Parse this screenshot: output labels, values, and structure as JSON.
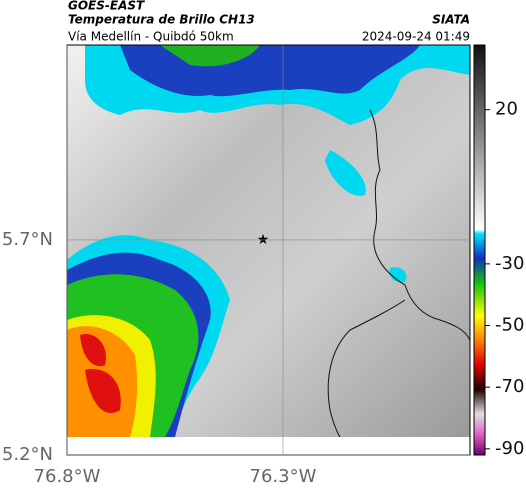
{
  "header": {
    "source": "GOES-EAST",
    "title": "Temperatura de Brillo CH13",
    "brand": "SIATA",
    "subtitle": "Vía Medellín - Quibdó 50km",
    "timestamp": "2024-09-24 01:49"
  },
  "map": {
    "xlim": [
      -76.8,
      -75.867
    ],
    "ylim": [
      5.2,
      6.153
    ],
    "xticks": [
      {
        "value": -76.8,
        "label": "76.8°W"
      },
      {
        "value": -76.3,
        "label": "76.3°W"
      }
    ],
    "yticks": [
      {
        "value": 5.2,
        "label": "5.2°N"
      },
      {
        "value": 5.7,
        "label": "5.7°N"
      }
    ]
  },
  "colorbar": {
    "lim": [
      -92,
      41
    ],
    "ticks": [
      20,
      -30,
      -50,
      -70,
      -90
    ]
  }
}
